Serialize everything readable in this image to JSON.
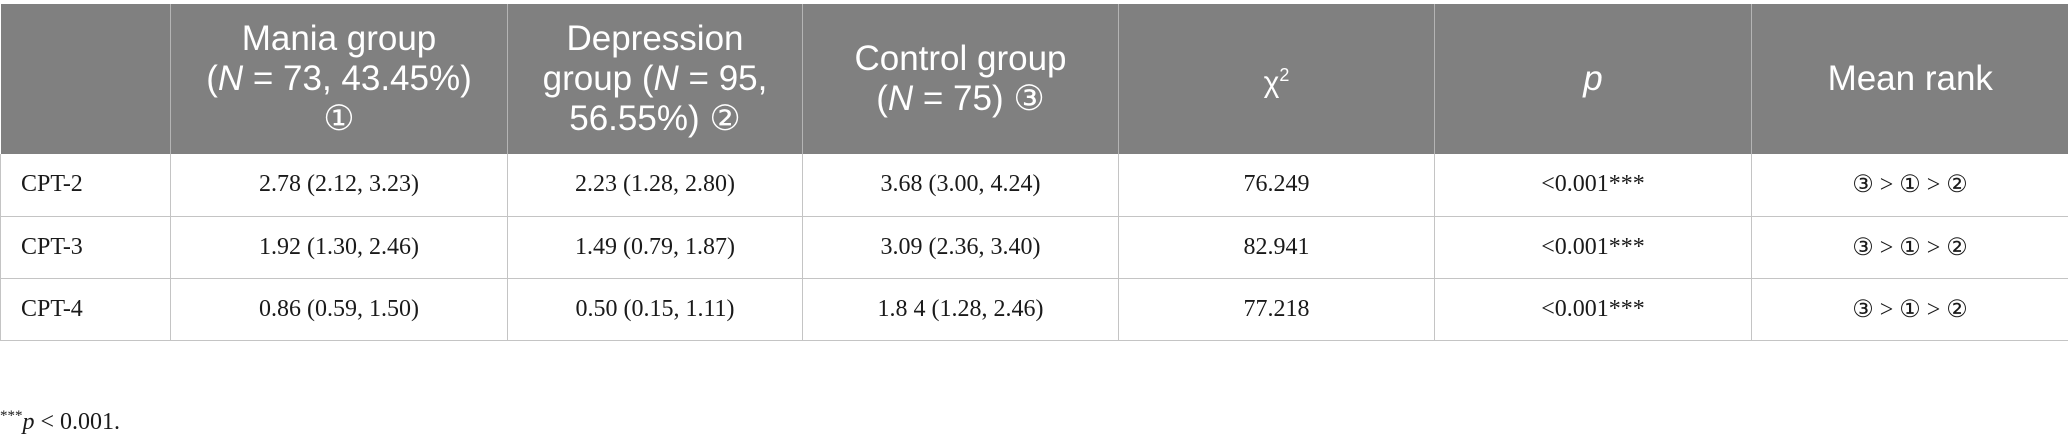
{
  "table": {
    "columns": [
      {
        "line1": "",
        "ital": "",
        "line2": "",
        "marker": ""
      },
      {
        "line1": "Mania group",
        "prefix": "(",
        "ital": "N",
        "rest": " = 73, 43.45%)",
        "marker": "①"
      },
      {
        "line1": "Depression",
        "prefix": "group (",
        "ital": "N",
        "rest": " = 95,",
        "line3": "56.55%)",
        "marker": "②"
      },
      {
        "line1": "Control group",
        "prefix": "(",
        "ital": "N",
        "rest": " = 75)",
        "marker": "③"
      },
      {
        "symbol": "χ",
        "sup": "2"
      },
      {
        "label": "p"
      },
      {
        "label": "Mean rank"
      }
    ],
    "rows": [
      {
        "cells": [
          "CPT-2",
          "2.78 (2.12, 3.23)",
          "2.23 (1.28, 2.80)",
          "3.68 (3.00, 4.24)",
          "76.249",
          "<0.001***",
          "③ > ① > ②"
        ]
      },
      {
        "cells": [
          "CPT-3",
          "1.92 (1.30, 2.46)",
          "1.49 (0.79, 1.87)",
          "3.09 (2.36, 3.40)",
          "82.941",
          "<0.001***",
          "③ > ① > ②"
        ]
      },
      {
        "cells": [
          "CPT-4",
          "0.86 (0.59, 1.50)",
          "0.50 (0.15, 1.11)",
          "1.8 4 (1.28, 2.46)",
          "77.218",
          "<0.001***",
          "③ > ① > ②"
        ]
      }
    ]
  },
  "footnote": {
    "stars": "***",
    "var": "p",
    "text": " < 0.001."
  }
}
